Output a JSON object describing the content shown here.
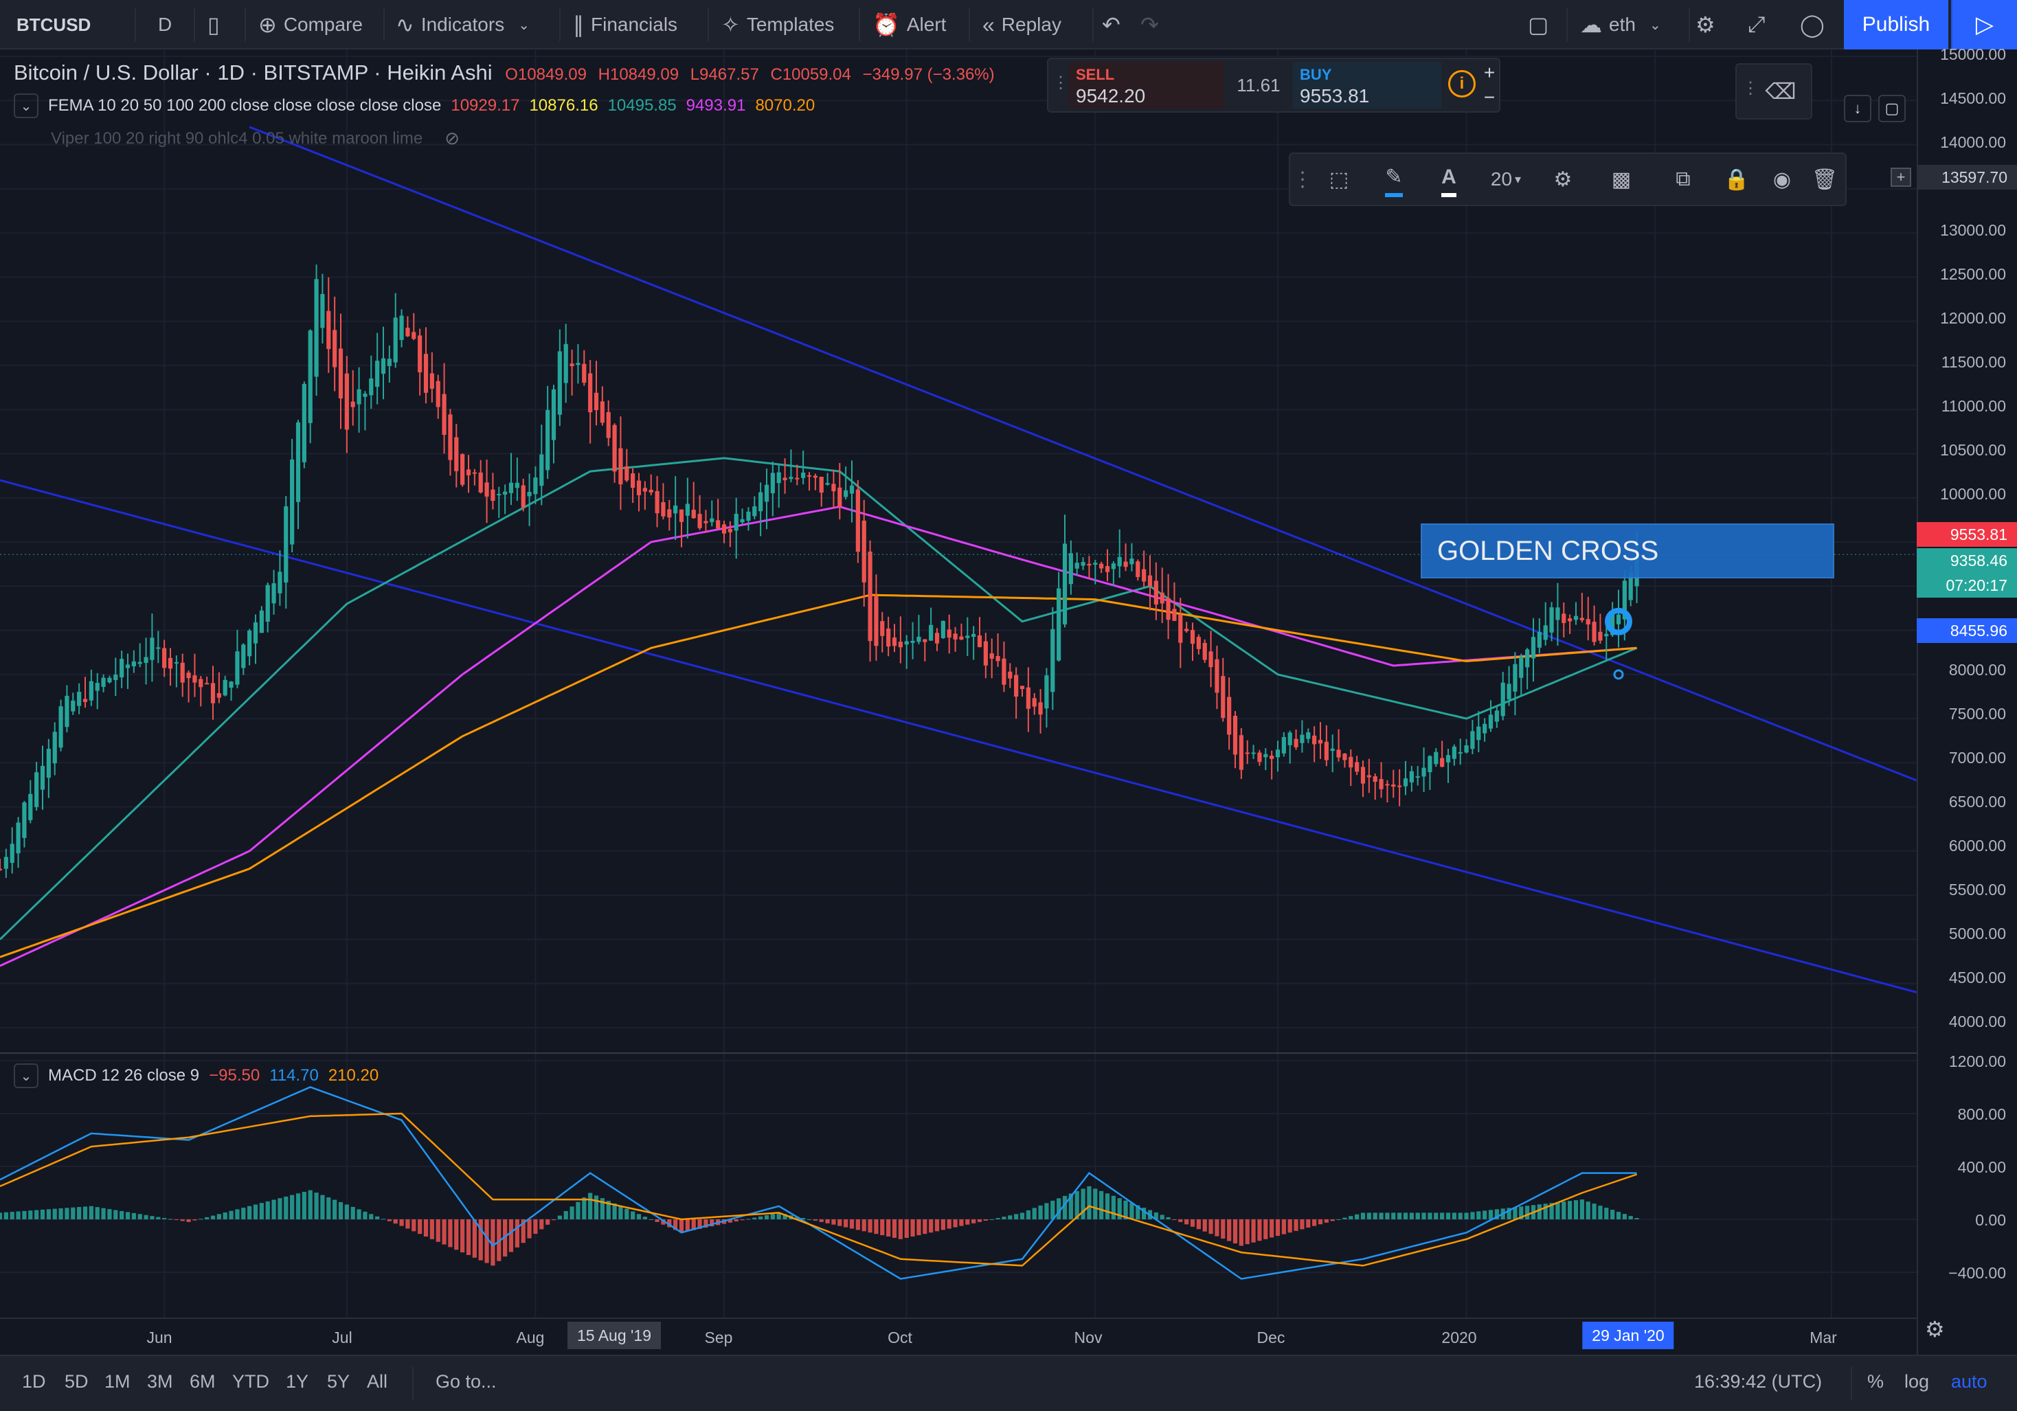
{
  "toolbar": {
    "symbol": "BTCUSD",
    "interval": "D",
    "compare": "Compare",
    "indicators": "Indicators",
    "financials": "Financials",
    "templates": "Templates",
    "alert": "Alert",
    "replay": "Replay",
    "layout_name": "eth",
    "publish": "Publish"
  },
  "legend": {
    "title": "Bitcoin / U.S. Dollar",
    "timeframe": "1D",
    "exchange": "BITSTAMP",
    "chart_style": "Heikin Ashi",
    "open": "O10849.09",
    "high": "H10849.09",
    "low": "L9467.57",
    "close": "C10059.04",
    "change": "−349.97 (−3.36%)",
    "fema_name": "FEMA 10 20 50 100 200 close close close close close",
    "fema_values": [
      "10929.17",
      "10876.16",
      "10495.85",
      "9493.91",
      "8070.20"
    ],
    "fema_colors": [
      "#ef5350",
      "#ffeb3b",
      "#26a69a",
      "#e040fb",
      "#ff9800"
    ],
    "viper": "Viper 100 20 right 90 ohlc4 0.05 white maroon lime",
    "macd_name": "MACD 12 26 close 9",
    "macd_values": [
      "−95.50",
      "114.70",
      "210.20"
    ]
  },
  "trade": {
    "sell_label": "SELL",
    "sell_price": "9542.20",
    "spread": "11.61",
    "buy_label": "BUY",
    "buy_price": "9553.81"
  },
  "drawing_toolbar": {
    "font_size": "20"
  },
  "annotation": {
    "text": "GOLDEN CROSS"
  },
  "price_axis": {
    "labels": [
      "15000.00",
      "14500.00",
      "14000.00",
      "13000.00",
      "12500.00",
      "12000.00",
      "11500.00",
      "11000.00",
      "10500.00",
      "10000.00",
      "8000.00",
      "7500.00",
      "7000.00",
      "6500.00",
      "6000.00",
      "5500.00",
      "5000.00",
      "4500.00",
      "4000.00"
    ],
    "crosshair": "13597.70",
    "last_buy": "9553.81",
    "last_price": "9358.46",
    "countdown": "07:20:17",
    "ma_200": "8455.96"
  },
  "macd_axis": {
    "labels": [
      "1200.00",
      "800.00",
      "400.00",
      "0.00",
      "−400.00"
    ]
  },
  "time_axis": {
    "labels": [
      "Jun",
      "Jul",
      "Aug",
      "Sep",
      "Oct",
      "Nov",
      "Dec",
      "2020",
      "Mar"
    ],
    "date_marker_left": "15 Aug '19",
    "date_marker_right": "29 Jan '20"
  },
  "bottom": {
    "ranges": [
      "1D",
      "5D",
      "1M",
      "3M",
      "6M",
      "YTD",
      "1Y",
      "5Y",
      "All"
    ],
    "goto": "Go to...",
    "clock": "16:39:42 (UTC)",
    "percent": "%",
    "log": "log",
    "auto": "auto"
  },
  "chart_data": {
    "type": "candlestick",
    "title": "Bitcoin / U.S. Dollar",
    "x_range": [
      "2019-05-05",
      "2020-03-15"
    ],
    "y_range": [
      3800,
      15000
    ],
    "close_trend": [
      [
        "2019-05-05",
        5800
      ],
      [
        "2019-05-15",
        7600
      ],
      [
        "2019-05-30",
        8300
      ],
      [
        "2019-06-10",
        7700
      ],
      [
        "2019-06-20",
        9300
      ],
      [
        "2019-06-26",
        12500
      ],
      [
        "2019-07-01",
        10800
      ],
      [
        "2019-07-10",
        12000
      ],
      [
        "2019-07-20",
        10200
      ],
      [
        "2019-07-31",
        10000
      ],
      [
        "2019-08-06",
        11800
      ],
      [
        "2019-08-15",
        10200
      ],
      [
        "2019-08-31",
        9600
      ],
      [
        "2019-09-10",
        10300
      ],
      [
        "2019-09-22",
        10000
      ],
      [
        "2019-09-25",
        8400
      ],
      [
        "2019-10-10",
        8500
      ],
      [
        "2019-10-23",
        7500
      ],
      [
        "2019-10-27",
        9400
      ],
      [
        "2019-11-07",
        9200
      ],
      [
        "2019-11-20",
        8000
      ],
      [
        "2019-11-25",
        7000
      ],
      [
        "2019-12-05",
        7300
      ],
      [
        "2019-12-18",
        6700
      ],
      [
        "2020-01-01",
        7200
      ],
      [
        "2020-01-10",
        8100
      ],
      [
        "2020-01-15",
        8800
      ],
      [
        "2020-01-24",
        8400
      ],
      [
        "2020-01-29",
        9358
      ]
    ],
    "moving_averages": [
      {
        "name": "FEMA 50",
        "color": "#26a69a",
        "points": [
          [
            "2019-05-05",
            5000
          ],
          [
            "2019-07-01",
            8800
          ],
          [
            "2019-08-10",
            10300
          ],
          [
            "2019-09-01",
            10450
          ],
          [
            "2019-09-20",
            10300
          ],
          [
            "2019-10-20",
            8600
          ],
          [
            "2019-11-10",
            9000
          ],
          [
            "2019-12-01",
            8000
          ],
          [
            "2020-01-01",
            7500
          ],
          [
            "2020-01-29",
            8300
          ]
        ]
      },
      {
        "name": "FEMA 100",
        "color": "#e040fb",
        "points": [
          [
            "2019-05-05",
            4700
          ],
          [
            "2019-06-15",
            6000
          ],
          [
            "2019-07-20",
            8000
          ],
          [
            "2019-08-20",
            9500
          ],
          [
            "2019-09-20",
            9900
          ],
          [
            "2019-10-20",
            9300
          ],
          [
            "2019-11-20",
            8700
          ],
          [
            "2019-12-20",
            8100
          ],
          [
            "2020-01-29",
            8300
          ]
        ]
      },
      {
        "name": "FEMA 200",
        "color": "#ff9800",
        "points": [
          [
            "2019-05-05",
            4800
          ],
          [
            "2019-06-15",
            5800
          ],
          [
            "2019-07-20",
            7300
          ],
          [
            "2019-08-20",
            8300
          ],
          [
            "2019-09-25",
            8900
          ],
          [
            "2019-11-01",
            8850
          ],
          [
            "2019-12-01",
            8500
          ],
          [
            "2020-01-01",
            8150
          ],
          [
            "2020-01-29",
            8300
          ]
        ]
      }
    ],
    "trendlines": [
      {
        "color": "#1e2bd6",
        "from": [
          "2019-06-15",
          14200
        ],
        "to": [
          "2020-03-15",
          6800
        ]
      },
      {
        "color": "#1e2bd6",
        "from": [
          "2019-05-05",
          10200
        ],
        "to": [
          "2020-03-15",
          4400
        ]
      }
    ],
    "macd": {
      "y_range": [
        -600,
        1200
      ],
      "macd_line": [
        [
          "2019-05-05",
          300
        ],
        [
          "2019-05-20",
          650
        ],
        [
          "2019-06-05",
          600
        ],
        [
          "2019-06-25",
          1000
        ],
        [
          "2019-07-10",
          750
        ],
        [
          "2019-07-25",
          -200
        ],
        [
          "2019-08-10",
          350
        ],
        [
          "2019-08-25",
          -100
        ],
        [
          "2019-09-10",
          100
        ],
        [
          "2019-09-30",
          -450
        ],
        [
          "2019-10-20",
          -300
        ],
        [
          "2019-10-31",
          350
        ],
        [
          "2019-11-25",
          -450
        ],
        [
          "2019-12-15",
          -300
        ],
        [
          "2020-01-01",
          -100
        ],
        [
          "2020-01-20",
          350
        ],
        [
          "2020-01-29",
          350
        ]
      ],
      "signal_line": [
        [
          "2019-05-05",
          250
        ],
        [
          "2019-05-20",
          550
        ],
        [
          "2019-06-05",
          620
        ],
        [
          "2019-06-25",
          780
        ],
        [
          "2019-07-10",
          800
        ],
        [
          "2019-07-25",
          150
        ],
        [
          "2019-08-10",
          150
        ],
        [
          "2019-08-25",
          0
        ],
        [
          "2019-09-10",
          50
        ],
        [
          "2019-09-30",
          -300
        ],
        [
          "2019-10-20",
          -350
        ],
        [
          "2019-10-31",
          100
        ],
        [
          "2019-11-25",
          -250
        ],
        [
          "2019-12-15",
          -350
        ],
        [
          "2020-01-01",
          -150
        ],
        [
          "2020-01-20",
          200
        ],
        [
          "2020-01-29",
          340
        ]
      ]
    }
  }
}
